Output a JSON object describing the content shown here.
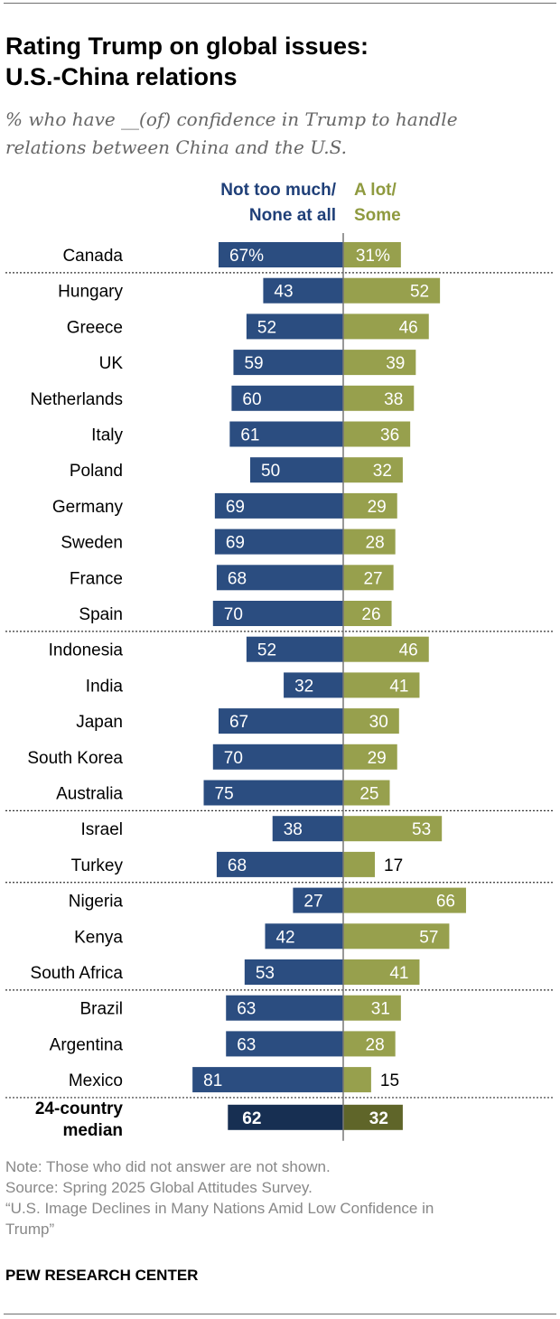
{
  "header": {
    "title_lines": [
      "Rating Trump on global issues:",
      "U.S.-China relations"
    ],
    "subtitle_lines": [
      "% who have __(of) confidence in Trump to handle",
      "relations between China and the U.S."
    ]
  },
  "chart_data": {
    "type": "bar",
    "orientation": "diverging-horizontal",
    "legend": {
      "left_lines": [
        "Not too much/",
        "None at all"
      ],
      "right_lines": [
        "A lot/",
        "Some"
      ]
    },
    "categories": [
      "Canada",
      "Hungary",
      "Greece",
      "UK",
      "Netherlands",
      "Italy",
      "Poland",
      "Germany",
      "Sweden",
      "France",
      "Spain",
      "Indonesia",
      "India",
      "Japan",
      "South Korea",
      "Australia",
      "Israel",
      "Turkey",
      "Nigeria",
      "Kenya",
      "South Africa",
      "Brazil",
      "Argentina",
      "Mexico"
    ],
    "series": [
      {
        "name": "Not too much/None at all",
        "values": [
          67,
          43,
          52,
          59,
          60,
          61,
          50,
          69,
          69,
          68,
          70,
          52,
          32,
          67,
          70,
          75,
          38,
          68,
          27,
          42,
          53,
          63,
          63,
          81
        ]
      },
      {
        "name": "A lot/Some",
        "values": [
          31,
          52,
          46,
          39,
          38,
          36,
          32,
          29,
          28,
          27,
          26,
          46,
          41,
          30,
          29,
          25,
          53,
          17,
          66,
          57,
          41,
          31,
          28,
          15
        ]
      }
    ],
    "value_labels": {
      "left": [
        "67%",
        "43",
        "52",
        "59",
        "60",
        "61",
        "50",
        "69",
        "69",
        "68",
        "70",
        "52",
        "32",
        "67",
        "70",
        "75",
        "38",
        "68",
        "27",
        "42",
        "53",
        "63",
        "63",
        "81"
      ],
      "right": [
        "31%",
        "52",
        "46",
        "39",
        "38",
        "36",
        "32",
        "29",
        "28",
        "27",
        "26",
        "46",
        "41",
        "30",
        "29",
        "25",
        "53",
        "17",
        "66",
        "57",
        "41",
        "31",
        "28",
        "15"
      ]
    },
    "group_separators_after": [
      "Canada",
      "Spain",
      "Australia",
      "Turkey",
      "South Africa",
      "Mexico"
    ],
    "median": {
      "label_lines": [
        "24-country",
        "median"
      ],
      "left": 62,
      "right": 32
    },
    "colors": {
      "left": "#2b4d80",
      "right": "#97a04d",
      "median_left": "#172f52",
      "median_right": "#5f6529",
      "center_line": "#777777",
      "left_text": "#1f3f78",
      "right_text": "#8f9a3f"
    },
    "xlim": [
      0,
      100
    ]
  },
  "footer": {
    "note": "Note: Those who did not answer are not shown.",
    "source": "Source: Spring 2025 Global Attitudes Survey.",
    "report_lines": [
      "“U.S. Image Declines in Many Nations Amid Low Confidence in",
      "Trump”"
    ],
    "brand": "PEW RESEARCH CENTER"
  }
}
